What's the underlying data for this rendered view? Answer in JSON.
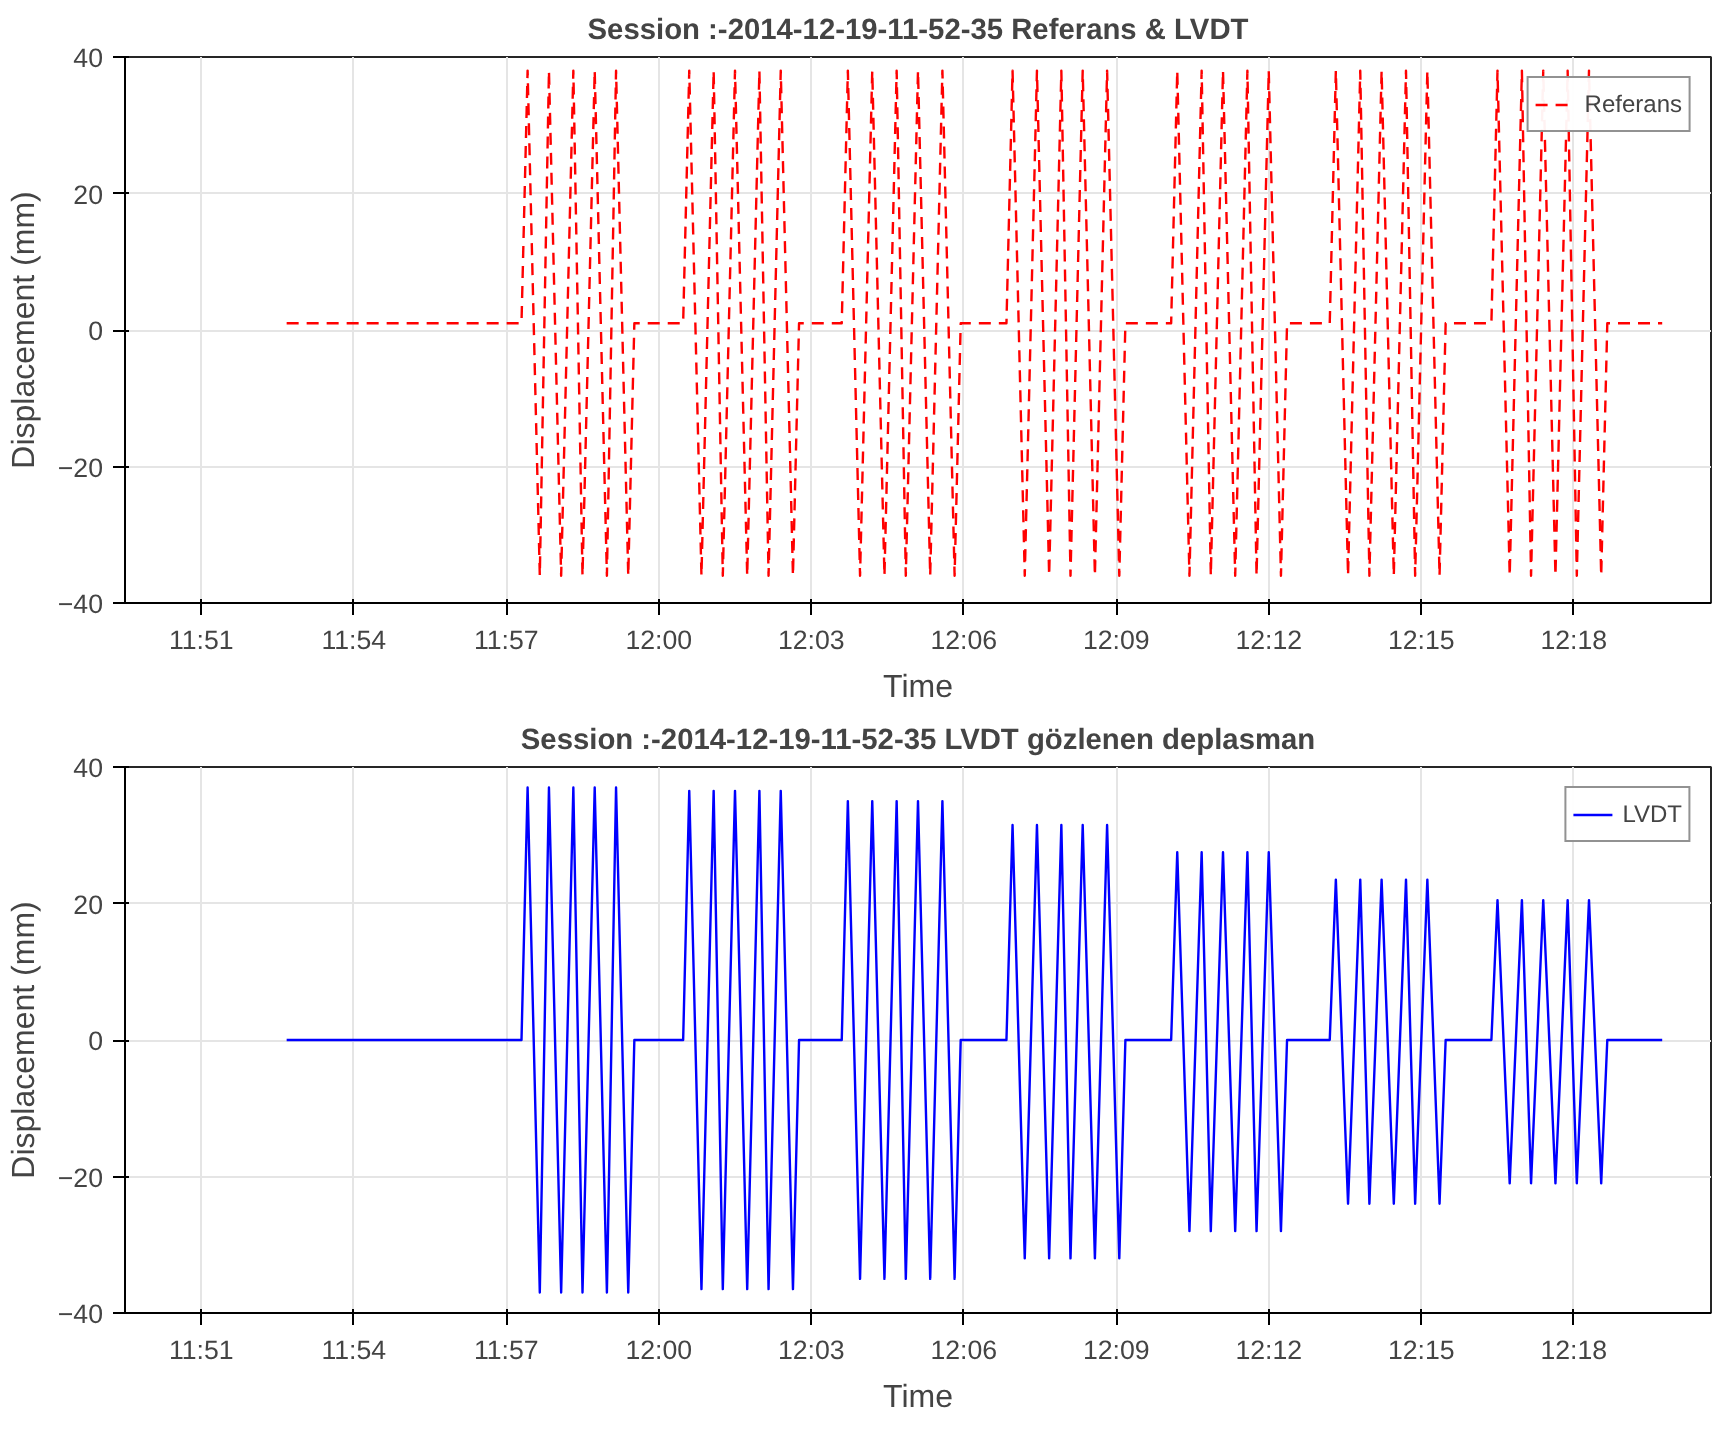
{
  "chart_data": [
    {
      "type": "line",
      "title": "Session :-2014-12-19-11-52-35 Referans & LVDT",
      "xlabel": "Time",
      "ylabel": "Displacement (mm)",
      "xlim": [
        11.825,
        12.345
      ],
      "ylim": [
        -40,
        40
      ],
      "xticks": [
        {
          "value": 11.85,
          "label": "11:51"
        },
        {
          "value": 11.9,
          "label": "11:54"
        },
        {
          "value": 11.95,
          "label": "11:57"
        },
        {
          "value": 12.0,
          "label": "12:00"
        },
        {
          "value": 12.05,
          "label": "12:03"
        },
        {
          "value": 12.1,
          "label": "12:06"
        },
        {
          "value": 12.15,
          "label": "12:09"
        },
        {
          "value": 12.2,
          "label": "12:12"
        },
        {
          "value": 12.25,
          "label": "12:15"
        },
        {
          "value": 12.3,
          "label": "12:18"
        }
      ],
      "yticks": [
        -40,
        -20,
        0,
        20,
        40
      ],
      "grid": true,
      "legend": "top right",
      "line_style": "dashed",
      "series": [
        {
          "name": "Referans",
          "color": "#ff0000",
          "x": [
            11.878,
            11.955,
            11.957,
            11.961,
            11.964,
            11.968,
            11.972,
            11.975,
            11.979,
            11.983,
            11.986,
            11.99,
            11.992,
            12.008,
            12.01,
            12.014,
            12.018,
            12.021,
            12.025,
            12.029,
            12.033,
            12.036,
            12.04,
            12.044,
            12.046,
            12.06,
            12.062,
            12.066,
            12.07,
            12.074,
            12.078,
            12.081,
            12.085,
            12.089,
            12.093,
            12.097,
            12.099,
            12.114,
            12.116,
            12.12,
            12.124,
            12.128,
            12.132,
            12.135,
            12.139,
            12.143,
            12.147,
            12.151,
            12.153,
            12.168,
            12.17,
            12.174,
            12.178,
            12.181,
            12.185,
            12.189,
            12.193,
            12.196,
            12.2,
            12.204,
            12.206,
            12.22,
            12.222,
            12.226,
            12.23,
            12.233,
            12.237,
            12.241,
            12.245,
            12.248,
            12.252,
            12.256,
            12.258,
            12.273,
            12.275,
            12.279,
            12.283,
            12.286,
            12.29,
            12.294,
            12.298,
            12.301,
            12.305,
            12.309,
            12.311,
            12.329
          ],
          "values": [
            1,
            1,
            38,
            -36,
            38,
            -36,
            38,
            -36,
            38,
            -36,
            38,
            -36,
            1,
            1,
            38,
            -36,
            38,
            -36,
            38,
            -36,
            38,
            -36,
            38,
            -36,
            1,
            1,
            38,
            -36,
            38,
            -36,
            38,
            -36,
            38,
            -36,
            38,
            -36,
            1,
            1,
            38,
            -36,
            38,
            -36,
            38,
            -36,
            38,
            -36,
            38,
            -36,
            1,
            1,
            38,
            -36,
            38,
            -36,
            38,
            -36,
            38,
            -36,
            38,
            -36,
            1,
            1,
            38,
            -36,
            38,
            -36,
            38,
            -36,
            38,
            -36,
            38,
            -36,
            1,
            1,
            38,
            -36,
            38,
            -36,
            38,
            -36,
            38,
            -36,
            38,
            -36,
            1,
            1
          ]
        }
      ]
    },
    {
      "type": "line",
      "title": "Session :-2014-12-19-11-52-35 LVDT gözlenen deplasman",
      "xlabel": "Time",
      "ylabel": "Displacement (mm)",
      "xlim": [
        11.825,
        12.345
      ],
      "ylim": [
        -40,
        40
      ],
      "xticks": [
        {
          "value": 11.85,
          "label": "11:51"
        },
        {
          "value": 11.9,
          "label": "11:54"
        },
        {
          "value": 11.95,
          "label": "11:57"
        },
        {
          "value": 12.0,
          "label": "12:00"
        },
        {
          "value": 12.05,
          "label": "12:03"
        },
        {
          "value": 12.1,
          "label": "12:06"
        },
        {
          "value": 12.15,
          "label": "12:09"
        },
        {
          "value": 12.2,
          "label": "12:12"
        },
        {
          "value": 12.25,
          "label": "12:15"
        },
        {
          "value": 12.3,
          "label": "12:18"
        }
      ],
      "yticks": [
        -40,
        -20,
        0,
        20,
        40
      ],
      "grid": true,
      "legend": "top right",
      "line_style": "solid",
      "series": [
        {
          "name": "LVDT",
          "color": "#0000ff",
          "x": [
            11.878,
            11.955,
            11.957,
            11.961,
            11.964,
            11.968,
            11.972,
            11.975,
            11.979,
            11.983,
            11.986,
            11.99,
            11.992,
            12.008,
            12.01,
            12.014,
            12.018,
            12.021,
            12.025,
            12.029,
            12.033,
            12.036,
            12.04,
            12.044,
            12.046,
            12.06,
            12.062,
            12.066,
            12.07,
            12.074,
            12.078,
            12.081,
            12.085,
            12.089,
            12.093,
            12.097,
            12.099,
            12.114,
            12.116,
            12.12,
            12.124,
            12.128,
            12.132,
            12.135,
            12.139,
            12.143,
            12.147,
            12.151,
            12.153,
            12.168,
            12.17,
            12.174,
            12.178,
            12.181,
            12.185,
            12.189,
            12.193,
            12.196,
            12.2,
            12.204,
            12.206,
            12.22,
            12.222,
            12.226,
            12.23,
            12.233,
            12.237,
            12.241,
            12.245,
            12.248,
            12.252,
            12.256,
            12.258,
            12.273,
            12.275,
            12.279,
            12.283,
            12.286,
            12.29,
            12.294,
            12.298,
            12.301,
            12.305,
            12.309,
            12.311,
            12.329
          ],
          "values": [
            0,
            0,
            37,
            -37,
            37,
            -37,
            37,
            -37,
            37,
            -37,
            37,
            -37,
            0,
            0,
            36.5,
            -36.5,
            36.5,
            -36.5,
            36.5,
            -36.5,
            36.5,
            -36.5,
            36.5,
            -36.5,
            0,
            0,
            35,
            -35,
            35,
            -35,
            35,
            -35,
            35,
            -35,
            35,
            -35,
            0,
            0,
            31.5,
            -32,
            31.5,
            -32,
            31.5,
            -32,
            31.5,
            -32,
            31.5,
            -32,
            0,
            0,
            27.5,
            -28,
            27.5,
            -28,
            27.5,
            -28,
            27.5,
            -28,
            27.5,
            -28,
            0,
            0,
            23.5,
            -24,
            23.5,
            -24,
            23.5,
            -24,
            23.5,
            -24,
            23.5,
            -24,
            0,
            0,
            20.5,
            -21,
            20.5,
            -21,
            20.5,
            -21,
            20.5,
            -21,
            20.5,
            -21,
            0,
            0
          ]
        }
      ]
    }
  ]
}
